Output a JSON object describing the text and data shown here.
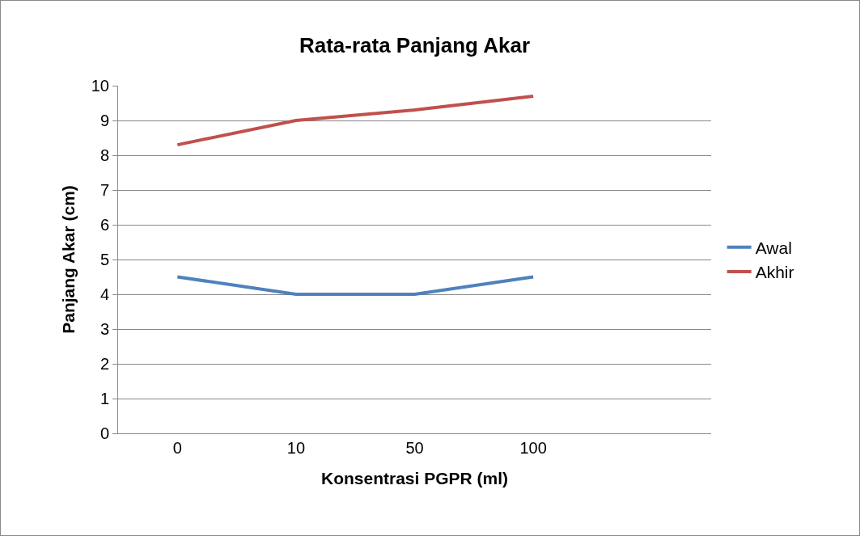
{
  "chart_data": {
    "type": "line",
    "title": "Rata-rata Panjang Akar",
    "xlabel": "Konsentrasi PGPR (ml)",
    "ylabel": "Panjang Akar (cm)",
    "categories": [
      "0",
      "10",
      "50",
      "100",
      null
    ],
    "series": [
      {
        "name": "Awal",
        "color": "#4f81bd",
        "values": [
          4.5,
          4,
          4,
          4.5,
          null
        ]
      },
      {
        "name": "Akhir",
        "color": "#c0504d",
        "values": [
          8.3,
          9.0,
          9.3,
          9.7,
          null
        ]
      }
    ],
    "ylim": [
      0,
      10
    ],
    "yticks": [
      0,
      1,
      2,
      3,
      4,
      5,
      6,
      7,
      8,
      9,
      10
    ],
    "grid": "y",
    "legend": "right",
    "marker": "none",
    "line_style": "solid"
  }
}
